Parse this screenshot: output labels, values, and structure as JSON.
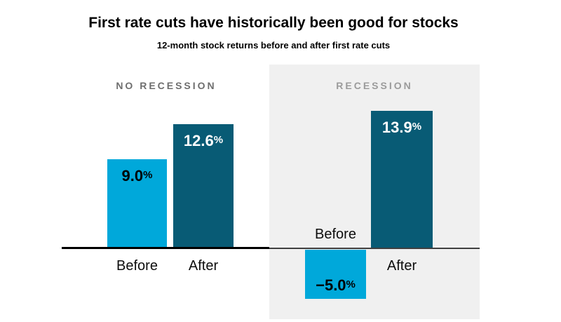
{
  "page": {
    "title": "First rate cuts have historically been good for stocks",
    "subtitle": "12-month stock returns before and after first rate cuts"
  },
  "colors": {
    "before_bar": "#00a8da",
    "after_bar": "#085b75",
    "recession_panel_bg": "#f0f0f0",
    "no_recession_label": "#6e6e6e",
    "recession_label": "#9b9b9b",
    "axis_no_recession": "#000000",
    "axis_recession": "#3f3f3f",
    "value_label_on_light": "#000000",
    "value_label_on_dark": "#ffffff"
  },
  "chart_data": {
    "type": "bar",
    "title": "First rate cuts have historically been good for stocks",
    "subtitle": "12-month stock returns before and after first rate cuts",
    "unit": "%",
    "baseline": 0,
    "legend": "none",
    "grid": false,
    "y_axis_ticks": "none",
    "groups": [
      {
        "label": "NO RECESSION",
        "bars": [
          {
            "category": "Before",
            "value": 9.0,
            "display": "9.0"
          },
          {
            "category": "After",
            "value": 12.6,
            "display": "12.6"
          }
        ]
      },
      {
        "label": "RECESSION",
        "bars": [
          {
            "category": "Before",
            "value": -5.0,
            "display": "−5.0"
          },
          {
            "category": "After",
            "value": 13.9,
            "display": "13.9"
          }
        ]
      }
    ]
  }
}
